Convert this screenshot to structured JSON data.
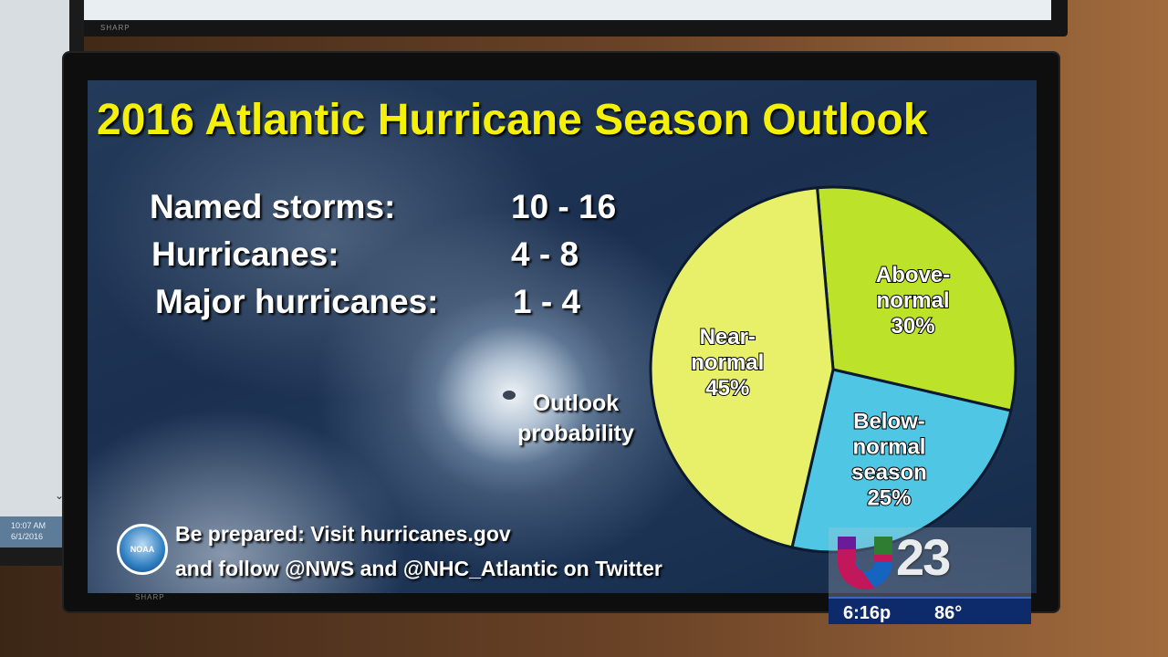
{
  "slide": {
    "title": "2016 Atlantic Hurricane Season Outlook",
    "stats": [
      {
        "label": "Named storms:",
        "value": "10 - 16"
      },
      {
        "label": "Hurricanes:",
        "value": "4 - 8"
      },
      {
        "label": "Major hurricanes:",
        "value": "1 - 4"
      }
    ],
    "outlook_label_line1": "Outlook",
    "outlook_label_line2": "probability",
    "footer_line1": "Be prepared: Visit hurricanes.gov",
    "footer_line2": "and follow @NWS and @NHC_Atlantic on Twitter",
    "logo_text": "NOAA"
  },
  "chart_data": {
    "type": "pie",
    "title": "Outlook probability",
    "slices": [
      {
        "label_lines": [
          "Above-",
          "normal",
          "30%"
        ],
        "name": "Above-normal",
        "value": 30,
        "color": "#bde22a"
      },
      {
        "label_lines": [
          "Below-",
          "normal",
          "season",
          "25%"
        ],
        "name": "Below-normal season",
        "value": 25,
        "color": "#4fc6e3"
      },
      {
        "label_lines": [
          "Near-",
          "normal",
          "45%"
        ],
        "name": "Near-normal",
        "value": 45,
        "color": "#e8f06a"
      }
    ]
  },
  "station_bug": {
    "channel": "23",
    "time": "6:16p",
    "temperature": "86°"
  },
  "monitors": {
    "top_brand": "SHARP",
    "tv_brand": "SHARP",
    "left_time": "10:07 AM",
    "left_date": "6/1/2016"
  }
}
